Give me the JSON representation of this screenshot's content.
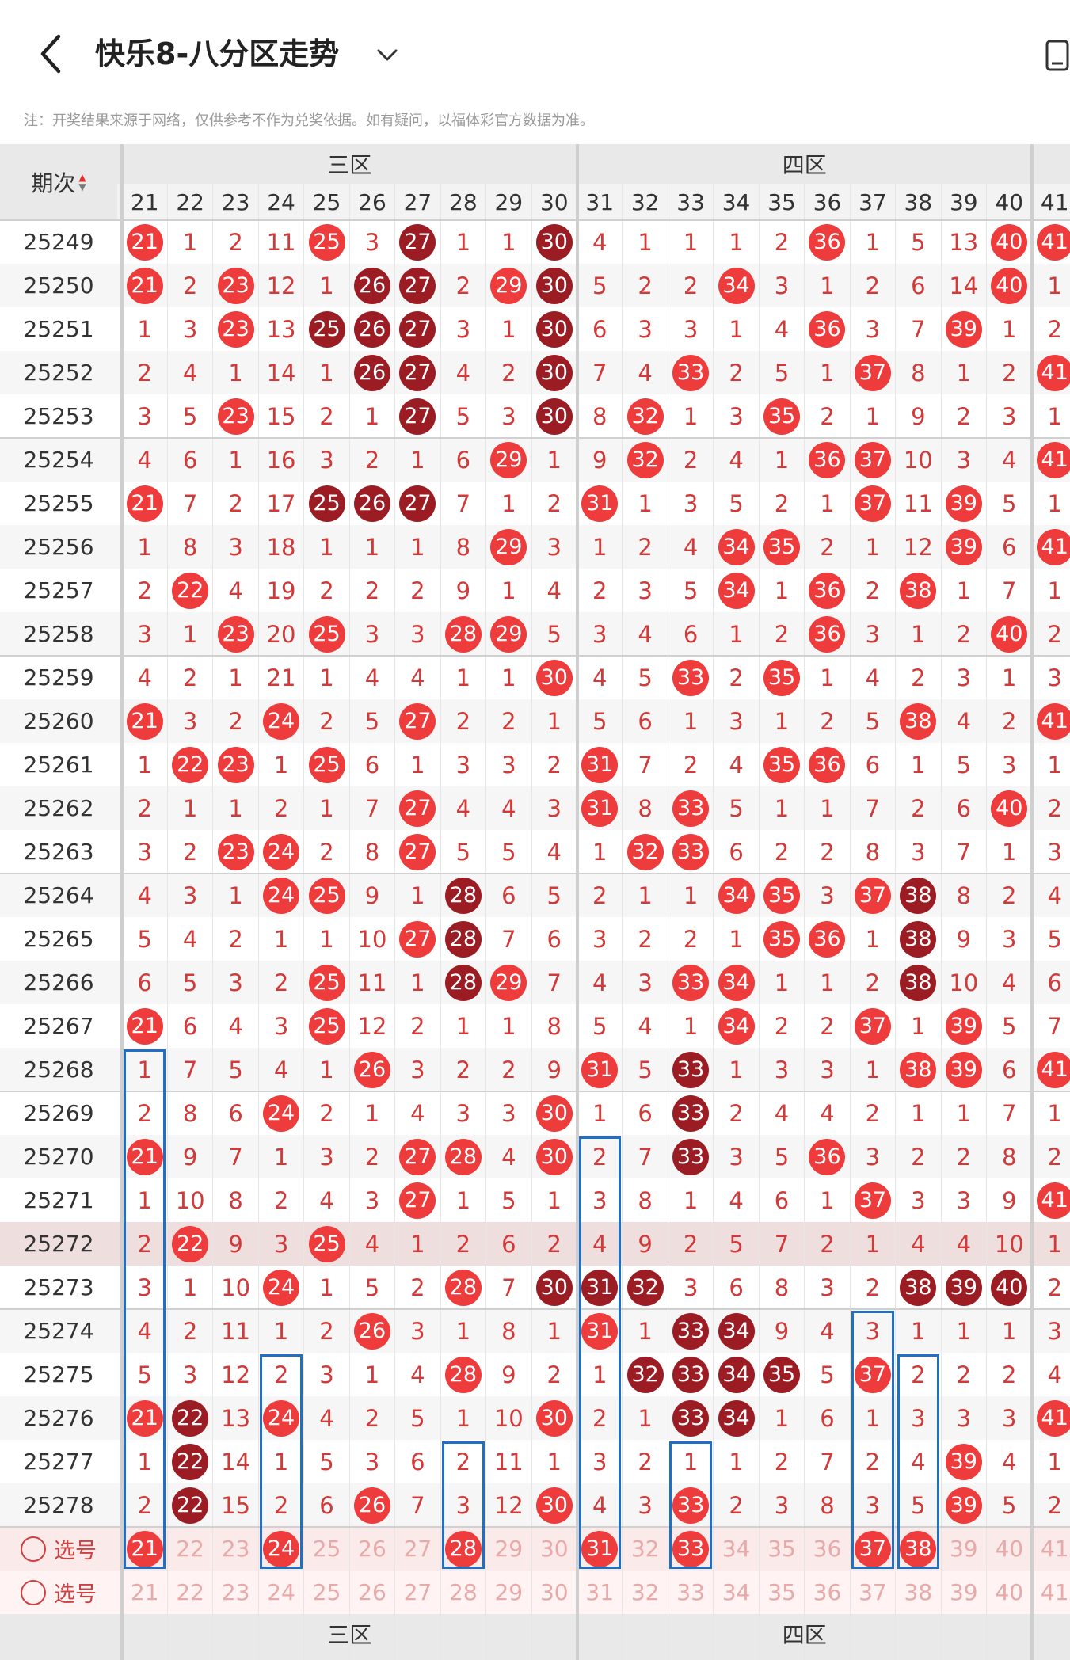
{
  "header": {
    "title": "快乐8-八分区走势"
  },
  "notice": "注：开奖结果来源于网络，仅供参考不作为兑奖依据。如有疑问，以福体彩官方数据为准。",
  "table": {
    "issue_header": "期次",
    "zones": [
      {
        "label": "三区"
      },
      {
        "label": "四区"
      }
    ],
    "columns": [
      "21",
      "22",
      "23",
      "24",
      "25",
      "26",
      "27",
      "28",
      "29",
      "30",
      "31",
      "32",
      "33",
      "34",
      "35",
      "36",
      "37",
      "38",
      "39",
      "40",
      "41"
    ],
    "rows": [
      {
        "issue": "25249",
        "cells": [
          "R21",
          "1",
          "2",
          "11",
          "R25",
          "3",
          "D27",
          "1",
          "1",
          "D30",
          "4",
          "1",
          "1",
          "1",
          "2",
          "R36",
          "1",
          "5",
          "13",
          "R40",
          "R41"
        ]
      },
      {
        "issue": "25250",
        "cells": [
          "R21",
          "2",
          "R23",
          "12",
          "1",
          "D26",
          "D27",
          "2",
          "R29",
          "D30",
          "5",
          "2",
          "2",
          "R34",
          "3",
          "1",
          "2",
          "6",
          "14",
          "R40",
          "1"
        ]
      },
      {
        "issue": "25251",
        "cells": [
          "1",
          "3",
          "R23",
          "13",
          "D25",
          "D26",
          "D27",
          "3",
          "1",
          "D30",
          "6",
          "3",
          "3",
          "1",
          "4",
          "R36",
          "3",
          "7",
          "R39",
          "1",
          "2"
        ]
      },
      {
        "issue": "25252",
        "cells": [
          "2",
          "4",
          "1",
          "14",
          "1",
          "D26",
          "D27",
          "4",
          "2",
          "D30",
          "7",
          "4",
          "R33",
          "2",
          "5",
          "1",
          "R37",
          "8",
          "1",
          "2",
          "R41"
        ]
      },
      {
        "issue": "25253",
        "cells": [
          "3",
          "5",
          "R23",
          "15",
          "2",
          "1",
          "D27",
          "5",
          "3",
          "D30",
          "8",
          "R32",
          "1",
          "3",
          "R35",
          "2",
          "1",
          "9",
          "2",
          "3",
          "1"
        ]
      },
      {
        "issue": "25254",
        "cells": [
          "4",
          "6",
          "1",
          "16",
          "3",
          "2",
          "1",
          "6",
          "R29",
          "1",
          "9",
          "R32",
          "2",
          "4",
          "1",
          "R36",
          "R37",
          "10",
          "3",
          "4",
          "R41"
        ]
      },
      {
        "issue": "25255",
        "cells": [
          "R21",
          "7",
          "2",
          "17",
          "D25",
          "D26",
          "D27",
          "7",
          "1",
          "2",
          "R31",
          "1",
          "3",
          "5",
          "2",
          "1",
          "R37",
          "11",
          "R39",
          "5",
          "1"
        ]
      },
      {
        "issue": "25256",
        "cells": [
          "1",
          "8",
          "3",
          "18",
          "1",
          "1",
          "1",
          "8",
          "R29",
          "3",
          "1",
          "2",
          "4",
          "R34",
          "R35",
          "2",
          "1",
          "12",
          "R39",
          "6",
          "R41"
        ]
      },
      {
        "issue": "25257",
        "cells": [
          "2",
          "R22",
          "4",
          "19",
          "2",
          "2",
          "2",
          "9",
          "1",
          "4",
          "2",
          "3",
          "5",
          "R34",
          "1",
          "R36",
          "2",
          "R38",
          "1",
          "7",
          "1"
        ]
      },
      {
        "issue": "25258",
        "cells": [
          "3",
          "1",
          "R23",
          "20",
          "R25",
          "3",
          "3",
          "R28",
          "R29",
          "5",
          "3",
          "4",
          "6",
          "1",
          "2",
          "R36",
          "3",
          "1",
          "2",
          "R40",
          "2"
        ]
      },
      {
        "issue": "25259",
        "cells": [
          "4",
          "2",
          "1",
          "21",
          "1",
          "4",
          "4",
          "1",
          "1",
          "R30",
          "4",
          "5",
          "R33",
          "2",
          "R35",
          "1",
          "4",
          "2",
          "3",
          "1",
          "3"
        ]
      },
      {
        "issue": "25260",
        "cells": [
          "R21",
          "3",
          "2",
          "R24",
          "2",
          "5",
          "R27",
          "2",
          "2",
          "1",
          "5",
          "6",
          "1",
          "3",
          "1",
          "2",
          "5",
          "R38",
          "4",
          "2",
          "R41"
        ]
      },
      {
        "issue": "25261",
        "cells": [
          "1",
          "R22",
          "R23",
          "1",
          "R25",
          "6",
          "1",
          "3",
          "3",
          "2",
          "R31",
          "7",
          "2",
          "4",
          "R35",
          "R36",
          "6",
          "1",
          "5",
          "3",
          "1"
        ]
      },
      {
        "issue": "25262",
        "cells": [
          "2",
          "1",
          "1",
          "2",
          "1",
          "7",
          "R27",
          "4",
          "4",
          "3",
          "R31",
          "8",
          "R33",
          "5",
          "1",
          "1",
          "7",
          "2",
          "6",
          "R40",
          "2"
        ]
      },
      {
        "issue": "25263",
        "cells": [
          "3",
          "2",
          "R23",
          "R24",
          "2",
          "8",
          "R27",
          "5",
          "5",
          "4",
          "1",
          "R32",
          "R33",
          "6",
          "2",
          "2",
          "8",
          "3",
          "7",
          "1",
          "3"
        ]
      },
      {
        "issue": "25264",
        "cells": [
          "4",
          "3",
          "1",
          "R24",
          "R25",
          "9",
          "1",
          "D28",
          "6",
          "5",
          "2",
          "1",
          "1",
          "R34",
          "R35",
          "3",
          "R37",
          "D38",
          "8",
          "2",
          "4"
        ]
      },
      {
        "issue": "25265",
        "cells": [
          "5",
          "4",
          "2",
          "1",
          "1",
          "10",
          "R27",
          "D28",
          "7",
          "6",
          "3",
          "2",
          "2",
          "1",
          "R35",
          "R36",
          "1",
          "D38",
          "9",
          "3",
          "5"
        ]
      },
      {
        "issue": "25266",
        "cells": [
          "6",
          "5",
          "3",
          "2",
          "R25",
          "11",
          "1",
          "D28",
          "R29",
          "7",
          "4",
          "3",
          "R33",
          "R34",
          "1",
          "1",
          "2",
          "D38",
          "10",
          "4",
          "6"
        ]
      },
      {
        "issue": "25267",
        "cells": [
          "R21",
          "6",
          "4",
          "3",
          "R25",
          "12",
          "2",
          "1",
          "1",
          "8",
          "5",
          "4",
          "1",
          "R34",
          "2",
          "2",
          "R37",
          "1",
          "R39",
          "5",
          "7"
        ]
      },
      {
        "issue": "25268",
        "cells": [
          "1",
          "7",
          "5",
          "4",
          "1",
          "R26",
          "3",
          "2",
          "2",
          "9",
          "R31",
          "5",
          "D33",
          "1",
          "3",
          "3",
          "1",
          "R38",
          "R39",
          "6",
          "R41"
        ]
      },
      {
        "issue": "25269",
        "cells": [
          "2",
          "8",
          "6",
          "R24",
          "2",
          "1",
          "4",
          "3",
          "3",
          "R30",
          "1",
          "6",
          "D33",
          "2",
          "4",
          "4",
          "2",
          "1",
          "1",
          "7",
          "1"
        ]
      },
      {
        "issue": "25270",
        "cells": [
          "R21",
          "9",
          "7",
          "1",
          "3",
          "2",
          "R27",
          "R28",
          "4",
          "R30",
          "2",
          "7",
          "D33",
          "3",
          "5",
          "R36",
          "3",
          "2",
          "2",
          "8",
          "2"
        ]
      },
      {
        "issue": "25271",
        "cells": [
          "1",
          "10",
          "8",
          "2",
          "4",
          "3",
          "R27",
          "1",
          "5",
          "1",
          "3",
          "8",
          "1",
          "4",
          "6",
          "1",
          "R37",
          "3",
          "3",
          "9",
          "R41"
        ]
      },
      {
        "issue": "25272",
        "cells": [
          "2",
          "R22",
          "9",
          "3",
          "R25",
          "4",
          "1",
          "2",
          "6",
          "2",
          "4",
          "9",
          "2",
          "5",
          "7",
          "2",
          "1",
          "4",
          "4",
          "10",
          "1"
        ]
      },
      {
        "issue": "25273",
        "cells": [
          "3",
          "1",
          "10",
          "R24",
          "1",
          "5",
          "2",
          "R28",
          "7",
          "D30",
          "D31",
          "D32",
          "3",
          "6",
          "8",
          "3",
          "2",
          "D38",
          "D39",
          "D40",
          "2"
        ]
      },
      {
        "issue": "25274",
        "cells": [
          "4",
          "2",
          "11",
          "1",
          "2",
          "R26",
          "3",
          "1",
          "8",
          "1",
          "R31",
          "1",
          "D33",
          "D34",
          "9",
          "4",
          "3",
          "1",
          "1",
          "1",
          "3"
        ]
      },
      {
        "issue": "25275",
        "cells": [
          "5",
          "3",
          "12",
          "2",
          "3",
          "1",
          "4",
          "R28",
          "9",
          "2",
          "1",
          "D32",
          "D33",
          "D34",
          "D35",
          "5",
          "R37",
          "2",
          "2",
          "2",
          "4"
        ]
      },
      {
        "issue": "25276",
        "cells": [
          "R21",
          "D22",
          "13",
          "R24",
          "4",
          "2",
          "5",
          "1",
          "10",
          "R30",
          "2",
          "1",
          "D33",
          "D34",
          "1",
          "6",
          "1",
          "3",
          "3",
          "3",
          "R41"
        ]
      },
      {
        "issue": "25277",
        "cells": [
          "1",
          "D22",
          "14",
          "1",
          "5",
          "3",
          "6",
          "2",
          "11",
          "1",
          "3",
          "2",
          "1",
          "1",
          "2",
          "7",
          "2",
          "4",
          "R39",
          "4",
          "1"
        ]
      },
      {
        "issue": "25278",
        "cells": [
          "2",
          "D22",
          "15",
          "2",
          "6",
          "R26",
          "7",
          "3",
          "12",
          "R30",
          "4",
          "3",
          "R33",
          "2",
          "3",
          "8",
          "3",
          "5",
          "R39",
          "5",
          "2"
        ]
      }
    ],
    "select_rows": [
      {
        "label": "选号",
        "cells": [
          "R21",
          "22",
          "23",
          "R24",
          "25",
          "26",
          "27",
          "R28",
          "29",
          "30",
          "R31",
          "32",
          "R33",
          "34",
          "35",
          "36",
          "R37",
          "R38",
          "39",
          "40",
          "41"
        ]
      },
      {
        "label": "选号",
        "cells": [
          "21",
          "22",
          "23",
          "24",
          "25",
          "26",
          "27",
          "28",
          "29",
          "30",
          "31",
          "32",
          "33",
          "34",
          "35",
          "36",
          "37",
          "38",
          "39",
          "40",
          "41"
        ]
      }
    ],
    "footer_zones": [
      {
        "label": "三区"
      },
      {
        "label": "四区"
      }
    ]
  }
}
